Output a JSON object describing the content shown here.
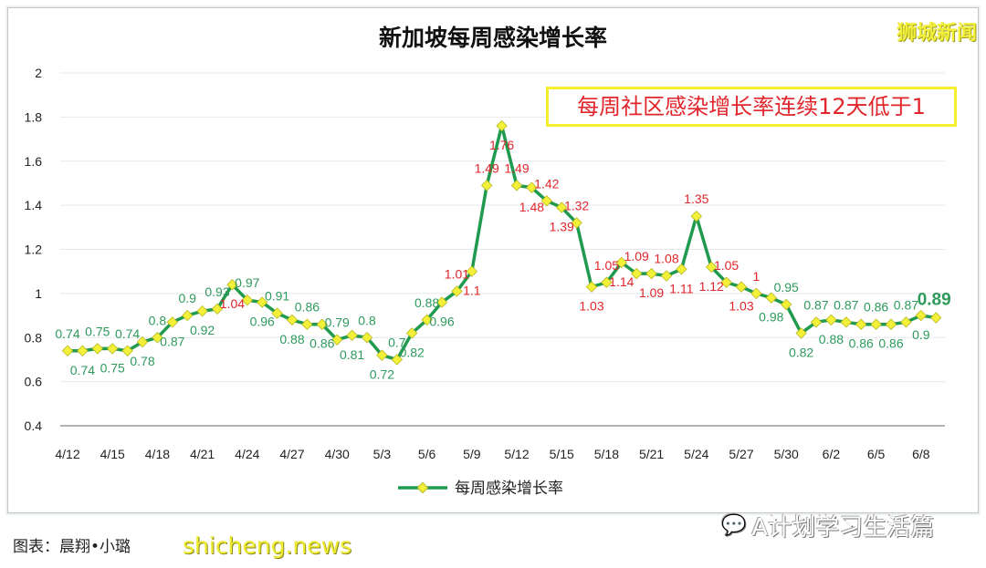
{
  "watermark_top": "狮城新闻",
  "annotation": "每周社区感染增长率连续12天低于1",
  "footer": {
    "credit": "图表：晨翔•小璐",
    "site_watermark": "shicheng.news",
    "account": "A计划学习生活篇"
  },
  "colors": {
    "line": "#1f9a4e",
    "marker": "#f3f03a",
    "label_above_one": "#e0252b",
    "label_below_one": "#2e9a5c",
    "annotation_border": "#f4ef2a"
  },
  "chart_data": {
    "type": "line",
    "title": "新加坡每周感染增长率",
    "xlabel": "",
    "ylabel": "",
    "ylim": [
      0.4,
      2
    ],
    "yticks": [
      "0.4",
      "0.6",
      "0.8",
      "1",
      "1.2",
      "1.4",
      "1.6",
      "1.8",
      "2"
    ],
    "xticks": [
      "4/12",
      "4/15",
      "4/18",
      "4/21",
      "4/24",
      "4/27",
      "4/30",
      "5/3",
      "5/6",
      "5/9",
      "5/12",
      "5/15",
      "5/18",
      "5/21",
      "5/24",
      "5/27",
      "5/30",
      "6/2",
      "6/5",
      "6/8"
    ],
    "grid": "horizontal",
    "legend": "bottom",
    "x": [
      "4/12",
      "4/13",
      "4/14",
      "4/15",
      "4/16",
      "4/17",
      "4/18",
      "4/19",
      "4/20",
      "4/21",
      "4/22",
      "4/23",
      "4/24",
      "4/25",
      "4/26",
      "4/27",
      "4/28",
      "4/29",
      "4/30",
      "5/1",
      "5/2",
      "5/3",
      "5/4",
      "5/5",
      "5/6",
      "5/7",
      "5/8",
      "5/9",
      "5/10",
      "5/11",
      "5/12",
      "5/13",
      "5/14",
      "5/15",
      "5/16",
      "5/17",
      "5/18",
      "5/19",
      "5/20",
      "5/21",
      "5/22",
      "5/23",
      "5/24",
      "5/25",
      "5/26",
      "5/27",
      "5/28",
      "5/29",
      "5/30",
      "5/31",
      "6/1",
      "6/2",
      "6/3",
      "6/4",
      "6/5",
      "6/6",
      "6/7",
      "6/8",
      "6/9"
    ],
    "series": [
      {
        "name": "每周感染增长率",
        "values": [
          0.74,
          0.74,
          0.75,
          0.75,
          0.74,
          0.78,
          0.8,
          0.87,
          0.9,
          0.92,
          0.93,
          1.04,
          0.97,
          0.96,
          0.91,
          0.88,
          0.86,
          0.86,
          0.79,
          0.81,
          0.8,
          0.72,
          0.7,
          0.82,
          0.88,
          0.96,
          1.01,
          1.1,
          1.49,
          1.76,
          1.49,
          1.48,
          1.42,
          1.39,
          1.32,
          1.03,
          1.05,
          1.14,
          1.09,
          1.09,
          1.08,
          1.11,
          1.35,
          1.12,
          1.05,
          1.03,
          1,
          0.98,
          0.95,
          0.82,
          0.87,
          0.88,
          0.87,
          0.86,
          0.86,
          0.86,
          0.87,
          0.9,
          0.89
        ]
      }
    ]
  }
}
